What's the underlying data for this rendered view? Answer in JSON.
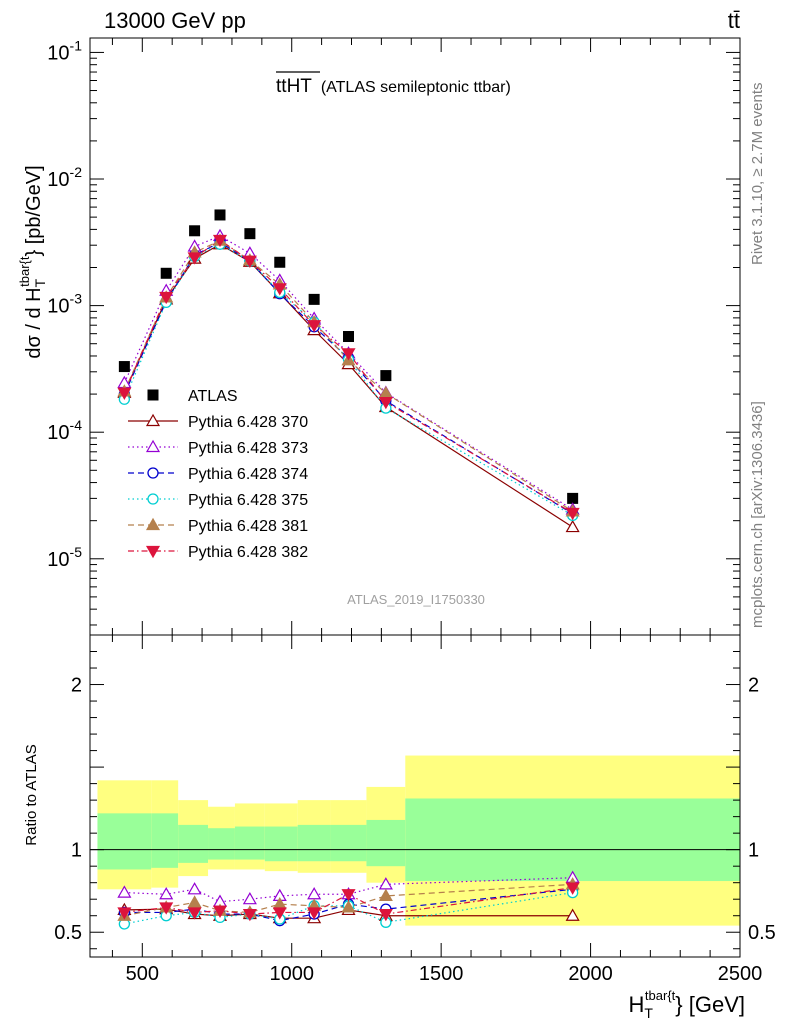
{
  "header": {
    "energy": "13000 GeV pp",
    "process": "tt̄"
  },
  "side_labels": {
    "rivet": "Rivet 3.1.10, ≥ 2.7M events",
    "mcplots": "mcplots.cern.ch [arXiv:1306.3436]"
  },
  "chart_data": [
    {
      "type": "line",
      "panel": "main",
      "title": "tt̄HT (ATLAS semileptonic ttbar)",
      "title_main": "tt",
      "title_over": "HT",
      "title_sub": "(ATLAS semileptonic ttbar)",
      "analysis": "ATLAS_2019_I1750330",
      "ylabel_prefix": "dσ / d H",
      "ylabel_sub": "T",
      "ylabel_sup": "tbar{t",
      "ylabel_suffix": "} [pb/GeV]",
      "yscale": "log",
      "ylim": [
        2.5e-06,
        0.13
      ],
      "xlim": [
        325,
        2500
      ],
      "ytick_labels": [
        "10^{-5}",
        "10^{-4}",
        "10^{-3}",
        "10^{-2}",
        "10^{-1}"
      ],
      "legend_position": "left",
      "x": [
        440,
        580,
        675,
        760,
        860,
        960,
        1075,
        1190,
        1315,
        1940
      ],
      "series": [
        {
          "name": "ATLAS",
          "color": "#000000",
          "marker": "square",
          "dash": "none",
          "values": [
            0.00033,
            0.0018,
            0.0039,
            0.0052,
            0.0037,
            0.0022,
            0.00112,
            0.00057,
            0.00028,
            3e-05
          ]
        },
        {
          "name": "Pythia 6.428 370",
          "color": "#8b0000",
          "marker": "triangle-open",
          "dash": "solid",
          "values": [
            0.000205,
            0.00112,
            0.00235,
            0.00305,
            0.00222,
            0.00125,
            0.00064,
            0.000345,
            0.000158,
            1.78e-05
          ]
        },
        {
          "name": "Pythia 6.428 373",
          "color": "#9400d3",
          "marker": "triangle-open",
          "dash": "dot",
          "values": [
            0.000245,
            0.00131,
            0.00293,
            0.00355,
            0.00259,
            0.00158,
            0.00079,
            0.00042,
            0.000205,
            2.45e-05
          ]
        },
        {
          "name": "Pythia 6.428 374",
          "color": "#0000cd",
          "marker": "circle-open",
          "dash": "dash",
          "values": [
            0.0002,
            0.00108,
            0.0025,
            0.00316,
            0.00225,
            0.00124,
            0.00068,
            0.000385,
            0.000177,
            2.27e-05
          ]
        },
        {
          "name": "Pythia 6.428 375",
          "color": "#00ced1",
          "marker": "circle-open",
          "dash": "dot",
          "values": [
            0.000182,
            0.00106,
            0.00244,
            0.00305,
            0.00225,
            0.00127,
            0.00074,
            0.000375,
            0.000155,
            2.2e-05
          ]
        },
        {
          "name": "Pythia 6.428 381",
          "color": "#b5804d",
          "marker": "triangle-filled",
          "dash": "dash",
          "values": [
            0.00021,
            0.00116,
            0.00263,
            0.00326,
            0.00228,
            0.00147,
            0.00074,
            0.00037,
            0.000203,
            2.37e-05
          ]
        },
        {
          "name": "Pythia 6.428 382",
          "color": "#dc143c",
          "marker": "triangle-down-filled",
          "dash": "dashdot",
          "values": [
            0.000205,
            0.00117,
            0.0024,
            0.0033,
            0.00226,
            0.00137,
            0.0007,
            0.00042,
            0.000173,
            2.3e-05
          ]
        }
      ]
    },
    {
      "type": "line",
      "panel": "ratio",
      "ylabel": "Ratio to ATLAS",
      "xlabel_prefix": "H",
      "xlabel_sub": "T",
      "xlabel_sup": "tbar{t",
      "xlabel_suffix": "} [GeV]",
      "ylim": [
        0.35,
        2.3
      ],
      "xlim": [
        325,
        2500
      ],
      "yticks": [
        0.5,
        1,
        2
      ],
      "ytick_labels": [
        "0.5",
        "1",
        "2"
      ],
      "xticks": [
        500,
        1000,
        1500,
        2000,
        2500
      ],
      "xtick_labels": [
        "500",
        "1000",
        "1500",
        "2000",
        "2500"
      ],
      "bands": {
        "edges": [
          350,
          530,
          620,
          720,
          810,
          910,
          1020,
          1130,
          1250,
          1380,
          2500
        ],
        "yellow_low": [
          0.76,
          0.77,
          0.84,
          0.88,
          0.88,
          0.87,
          0.86,
          0.86,
          0.8,
          0.54
        ],
        "yellow_high": [
          1.42,
          1.42,
          1.3,
          1.26,
          1.28,
          1.28,
          1.3,
          1.3,
          1.38,
          1.57
        ],
        "green_low": [
          0.88,
          0.89,
          0.92,
          0.94,
          0.94,
          0.93,
          0.93,
          0.93,
          0.9,
          0.81
        ],
        "green_high": [
          1.22,
          1.22,
          1.15,
          1.13,
          1.14,
          1.14,
          1.15,
          1.15,
          1.18,
          1.31
        ],
        "yellow_color": "#ffff80",
        "green_color": "#99ff99"
      },
      "x": [
        440,
        580,
        675,
        760,
        860,
        960,
        1075,
        1190,
        1315,
        1940
      ],
      "series": [
        {
          "name": "Pythia 6.428 370",
          "color": "#8b0000",
          "marker": "triangle-open",
          "dash": "solid",
          "values": [
            0.635,
            0.64,
            0.61,
            0.6,
            0.61,
            0.585,
            0.585,
            0.635,
            0.6,
            0.6
          ]
        },
        {
          "name": "Pythia 6.428 373",
          "color": "#9400d3",
          "marker": "triangle-open",
          "dash": "dot",
          "values": [
            0.74,
            0.73,
            0.76,
            0.685,
            0.7,
            0.72,
            0.73,
            0.73,
            0.79,
            0.83
          ]
        },
        {
          "name": "Pythia 6.428 374",
          "color": "#0000cd",
          "marker": "circle-open",
          "dash": "dash",
          "values": [
            0.62,
            0.62,
            0.64,
            0.61,
            0.61,
            0.57,
            0.61,
            0.67,
            0.64,
            0.76
          ]
        },
        {
          "name": "Pythia 6.428 375",
          "color": "#00ced1",
          "marker": "circle-open",
          "dash": "dot",
          "values": [
            0.55,
            0.6,
            0.62,
            0.59,
            0.61,
            0.58,
            0.66,
            0.66,
            0.56,
            0.74
          ]
        },
        {
          "name": "Pythia 6.428 381",
          "color": "#b5804d",
          "marker": "triangle-filled",
          "dash": "dash",
          "values": [
            0.6,
            0.65,
            0.68,
            0.63,
            0.62,
            0.67,
            0.66,
            0.65,
            0.72,
            0.79
          ]
        },
        {
          "name": "Pythia 6.428 382",
          "color": "#dc143c",
          "marker": "triangle-down-filled",
          "dash": "dashdot",
          "values": [
            0.62,
            0.65,
            0.62,
            0.63,
            0.61,
            0.62,
            0.62,
            0.73,
            0.61,
            0.77
          ]
        }
      ]
    }
  ]
}
